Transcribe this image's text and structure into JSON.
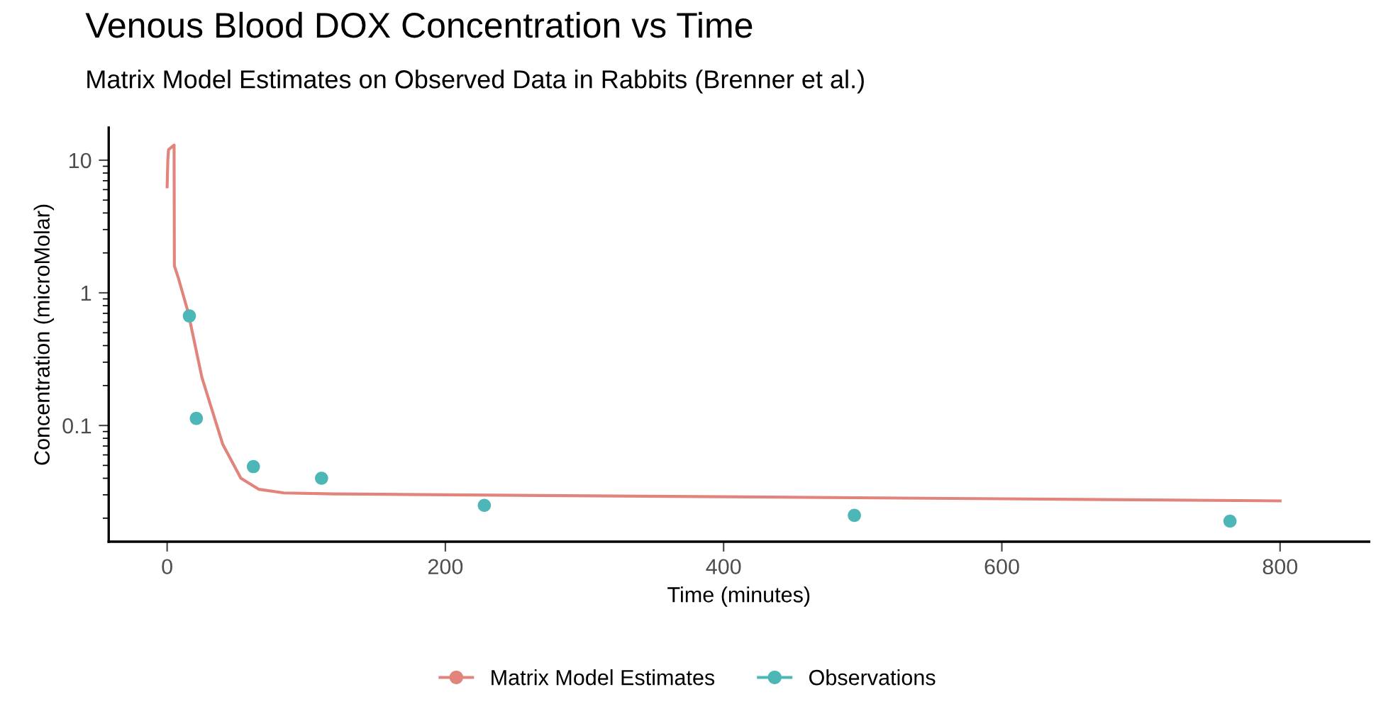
{
  "chart_data": {
    "type": "line",
    "title": "Venous Blood DOX Concentration vs Time",
    "subtitle": "Matrix Model Estimates on Observed Data in Rabbits (Brenner et al.)",
    "xlabel": "Time (minutes)",
    "ylabel": "Concentration (microMolar)",
    "series": [
      {
        "name": "Matrix Model Estimates",
        "color": "#e0847c",
        "x": [
          0,
          0.5,
          1,
          5,
          5.2,
          8,
          15,
          25,
          40,
          53,
          66,
          84,
          120,
          200,
          400,
          600,
          800
        ],
        "values": [
          6.3,
          10,
          12,
          13,
          1.6,
          1.3,
          0.72,
          0.23,
          0.072,
          0.04,
          0.033,
          0.031,
          0.0305,
          0.03,
          0.029,
          0.028,
          0.027
        ]
      },
      {
        "name": "Observations",
        "type": "scatter",
        "marker": "circle",
        "color": "#4db6b6",
        "x": [
          16,
          21,
          62,
          111,
          228,
          494,
          764
        ],
        "values": [
          0.67,
          0.113,
          0.049,
          0.04,
          0.025,
          0.021,
          0.019
        ]
      }
    ],
    "xlim": [
      -42,
      864
    ],
    "ylim": [
      0.0133,
      17.6
    ],
    "xticks": [
      0,
      200,
      400,
      600,
      800
    ],
    "yticks": [
      0.1,
      1,
      10
    ],
    "log": "y",
    "grid": false,
    "legend": "bottom"
  }
}
